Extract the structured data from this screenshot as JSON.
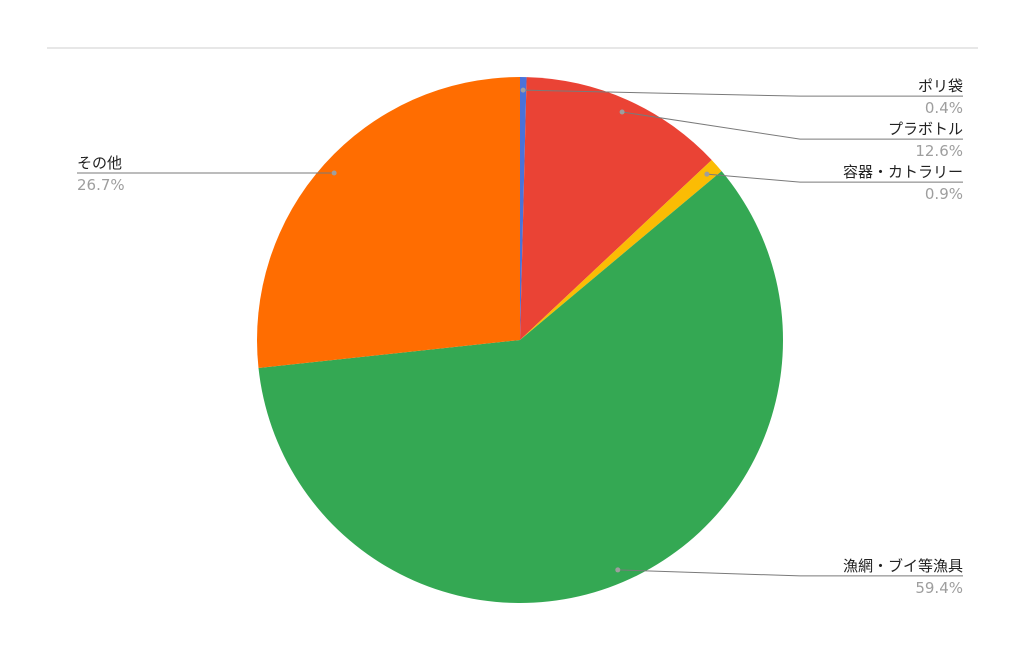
{
  "chart_data": {
    "type": "pie",
    "categories": [
      "ポリ袋",
      "プラボトル",
      "容器・カトラリー",
      "漁網・ブイ等漁具",
      "その他"
    ],
    "values": [
      0.4,
      12.6,
      0.9,
      59.4,
      26.7
    ],
    "value_labels": [
      "0.4%",
      "12.6%",
      "0.9%",
      "59.4%",
      "26.7%"
    ],
    "colors": [
      "#4a72d9",
      "#ea4335",
      "#fbbc04",
      "#34a853",
      "#ff6d01"
    ]
  }
}
